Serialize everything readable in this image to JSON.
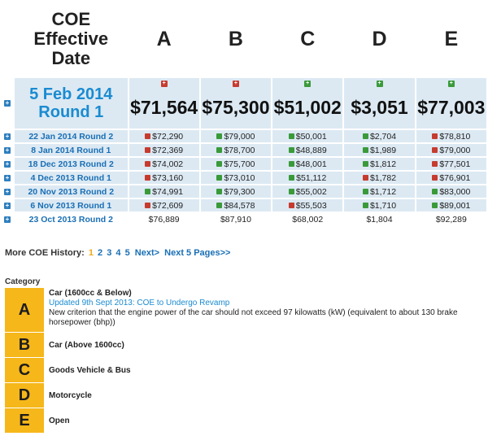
{
  "header": {
    "date_line1": "COE",
    "date_line2": "Effective",
    "date_line3": "Date",
    "categories": [
      "A",
      "B",
      "C",
      "D",
      "E"
    ]
  },
  "current": {
    "date_line1": "5 Feb 2014",
    "date_line2": "Round 1",
    "values": [
      "$71,564",
      "$75,300",
      "$51,002",
      "$3,051",
      "$77,003"
    ],
    "trend": [
      "up",
      "up",
      "down",
      "down",
      "down"
    ]
  },
  "history": [
    {
      "date": "22 Jan 2014 Round 2",
      "values": [
        "$72,290",
        "$79,000",
        "$50,001",
        "$2,704",
        "$78,810"
      ],
      "trend": [
        "up",
        "down",
        "down",
        "down",
        "up"
      ]
    },
    {
      "date": "8 Jan 2014 Round 1",
      "values": [
        "$72,369",
        "$78,700",
        "$48,889",
        "$1,989",
        "$79,000"
      ],
      "trend": [
        "up",
        "down",
        "down",
        "down",
        "up"
      ]
    },
    {
      "date": "18 Dec 2013 Round 2",
      "values": [
        "$74,002",
        "$75,700",
        "$48,001",
        "$1,812",
        "$77,501"
      ],
      "trend": [
        "up",
        "down",
        "down",
        "down",
        "up"
      ]
    },
    {
      "date": "4 Dec 2013 Round 1",
      "values": [
        "$73,160",
        "$73,010",
        "$51,112",
        "$1,782",
        "$76,901"
      ],
      "trend": [
        "up",
        "down",
        "down",
        "up",
        "up"
      ]
    },
    {
      "date": "20 Nov 2013 Round 2",
      "values": [
        "$74,991",
        "$79,300",
        "$55,002",
        "$1,712",
        "$83,000"
      ],
      "trend": [
        "down",
        "down",
        "down",
        "down",
        "down"
      ]
    },
    {
      "date": "6 Nov 2013 Round 1",
      "values": [
        "$72,609",
        "$84,578",
        "$55,503",
        "$1,710",
        "$89,001"
      ],
      "trend": [
        "up",
        "down",
        "up",
        "down",
        "down"
      ]
    },
    {
      "date": "23 Oct 2013 Round 2",
      "values": [
        "$76,889",
        "$87,910",
        "$68,002",
        "$1,804",
        "$92,289"
      ],
      "trend": [
        "none",
        "none",
        "none",
        "none",
        "none"
      ]
    }
  ],
  "expand_symbol": "+",
  "pagination": {
    "label": "More COE History:",
    "pages": [
      "1",
      "2",
      "3",
      "4",
      "5"
    ],
    "next": "Next>",
    "next5": "Next 5 Pages>>"
  },
  "legend": {
    "title": "Category",
    "items": [
      {
        "letter": "A",
        "name": "Car (1600cc & Below)",
        "link": "Updated 9th Sept 2013: COE to Undergo Revamp",
        "desc": "New criterion that the engine power of the car should not exceed 97 kilowatts (kW) (equivalent to about 130 brake horsepower (bhp))"
      },
      {
        "letter": "B",
        "name": "Car (Above 1600cc)"
      },
      {
        "letter": "C",
        "name": "Goods Vehicle & Bus"
      },
      {
        "letter": "D",
        "name": "Motorcycle"
      },
      {
        "letter": "E",
        "name": "Open"
      }
    ]
  },
  "colors": {
    "row_bg": "#dce9f3",
    "link_blue": "#1a8bd1",
    "category_yellow": "#f6b71a",
    "trend_up": "#c63b2f",
    "trend_down": "#3a9a3a"
  }
}
